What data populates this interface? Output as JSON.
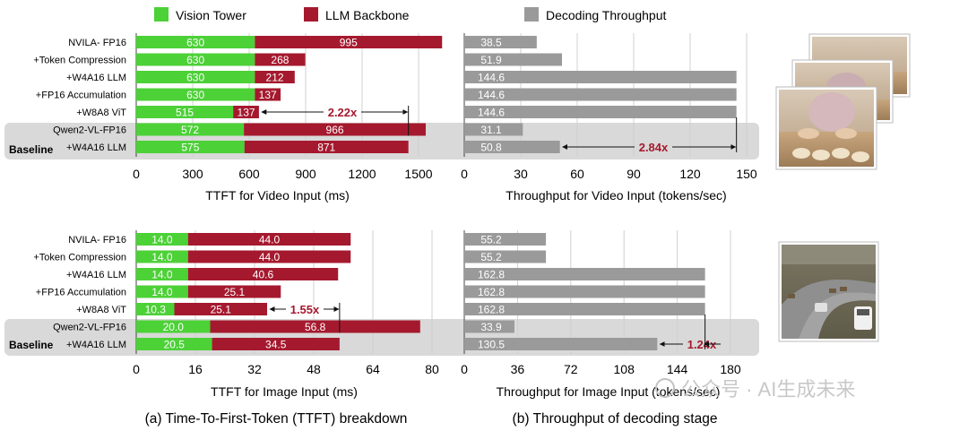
{
  "legend": [
    {
      "label": "Vision Tower",
      "color": "#4cd137"
    },
    {
      "label": "LLM Backbone",
      "color": "#a5192e"
    },
    {
      "label": "Decoding Throughput",
      "color": "#9a9a9a"
    }
  ],
  "colors": {
    "vision": "#4cd137",
    "llm": "#a5192e",
    "throughput": "#9a9a9a",
    "band": "#d9d9d9",
    "ratio": "#a5192e"
  },
  "baseline_label": "Baseline",
  "captions": {
    "a": "(a) Time-To-First-Token (TTFT) breakdown",
    "b": "(b) Throughput of decoding stage"
  },
  "watermark": "公众号 · AI生成未来",
  "chart_data": [
    {
      "type": "bar",
      "subtype": "stacked-horizontal",
      "xlabel": "TTFT for Video Input (ms)",
      "xlim": [
        0,
        1500
      ],
      "ticks": [
        0,
        300,
        600,
        900,
        1200,
        1500
      ],
      "categories": [
        "NVILA- FP16",
        "+Token Compression",
        "+W4A16 LLM",
        "+FP16 Accumulation",
        "+W8A8 ViT",
        "Qwen2-VL-FP16",
        "+W4A16 LLM"
      ],
      "series": [
        {
          "name": "Vision Tower",
          "values": [
            630,
            630,
            630,
            630,
            515,
            572,
            575
          ],
          "labels": [
            "630",
            "630",
            "630",
            "630",
            "515",
            "572",
            "575"
          ]
        },
        {
          "name": "LLM Backbone",
          "values": [
            995,
            268,
            212,
            137,
            137,
            966,
            871
          ],
          "labels": [
            "995",
            "268",
            "212",
            "137",
            "137",
            "966",
            "871"
          ]
        }
      ],
      "baseline_rows": [
        5,
        6
      ],
      "annotation": {
        "text": "2.22x",
        "row": 4
      }
    },
    {
      "type": "bar",
      "subtype": "horizontal",
      "xlabel": "Throughput for Video Input (tokens/sec)",
      "xlim": [
        0,
        150
      ],
      "ticks": [
        0,
        30,
        60,
        90,
        120,
        150
      ],
      "categories": [
        "NVILA- FP16",
        "+Token Compression",
        "+W4A16 LLM",
        "+FP16 Accumulation",
        "+W8A8 ViT",
        "Qwen2-VL-FP16",
        "+W4A16 LLM"
      ],
      "series": [
        {
          "name": "Decoding Throughput",
          "values": [
            38.5,
            51.9,
            144.6,
            144.6,
            144.6,
            31.1,
            50.8
          ],
          "labels": [
            "38.5",
            "51.9",
            "144.6",
            "144.6",
            "144.6",
            "31.1",
            "50.8"
          ]
        }
      ],
      "baseline_rows": [
        5,
        6
      ],
      "annotation": {
        "text": "2.84x",
        "row": 6
      }
    },
    {
      "type": "bar",
      "subtype": "stacked-horizontal",
      "xlabel": "TTFT for Image Input (ms)",
      "xlim": [
        0,
        80
      ],
      "ticks": [
        0,
        16,
        32,
        48,
        64,
        80
      ],
      "categories": [
        "NVILA- FP16",
        "+Token Compression",
        "+W4A16 LLM",
        "+FP16 Accumulation",
        "+W8A8 ViT",
        "Qwen2-VL-FP16",
        "+W4A16 LLM"
      ],
      "series": [
        {
          "name": "Vision Tower",
          "values": [
            14.0,
            14.0,
            14.0,
            14.0,
            10.3,
            20.0,
            20.5
          ],
          "labels": [
            "14.0",
            "14.0",
            "14.0",
            "14.0",
            "10.3",
            "20.0",
            "20.5"
          ]
        },
        {
          "name": "LLM Backbone",
          "values": [
            44.0,
            44.0,
            40.6,
            25.1,
            25.1,
            56.8,
            34.5
          ],
          "labels": [
            "44.0",
            "44.0",
            "40.6",
            "25.1",
            "25.1",
            "56.8",
            "34.5"
          ]
        }
      ],
      "baseline_rows": [
        5,
        6
      ],
      "annotation": {
        "text": "1.55x",
        "row": 4
      }
    },
    {
      "type": "bar",
      "subtype": "horizontal",
      "xlabel": "Throughput for Image Input (tokens/sec)",
      "xlim": [
        0,
        180
      ],
      "ticks": [
        0,
        36,
        72,
        108,
        144,
        180
      ],
      "categories": [
        "NVILA- FP16",
        "+Token Compression",
        "+W4A16 LLM",
        "+FP16 Accumulation",
        "+W8A8 ViT",
        "Qwen2-VL-FP16",
        "+W4A16 LLM"
      ],
      "series": [
        {
          "name": "Decoding Throughput",
          "values": [
            55.2,
            55.2,
            162.8,
            162.8,
            162.8,
            33.9,
            130.5
          ],
          "labels": [
            "55.2",
            "55.2",
            "162.8",
            "162.8",
            "162.8",
            "33.9",
            "130.5"
          ]
        }
      ],
      "baseline_rows": [
        5,
        6
      ],
      "annotation": {
        "text": "1.24x",
        "row": 6
      }
    }
  ]
}
